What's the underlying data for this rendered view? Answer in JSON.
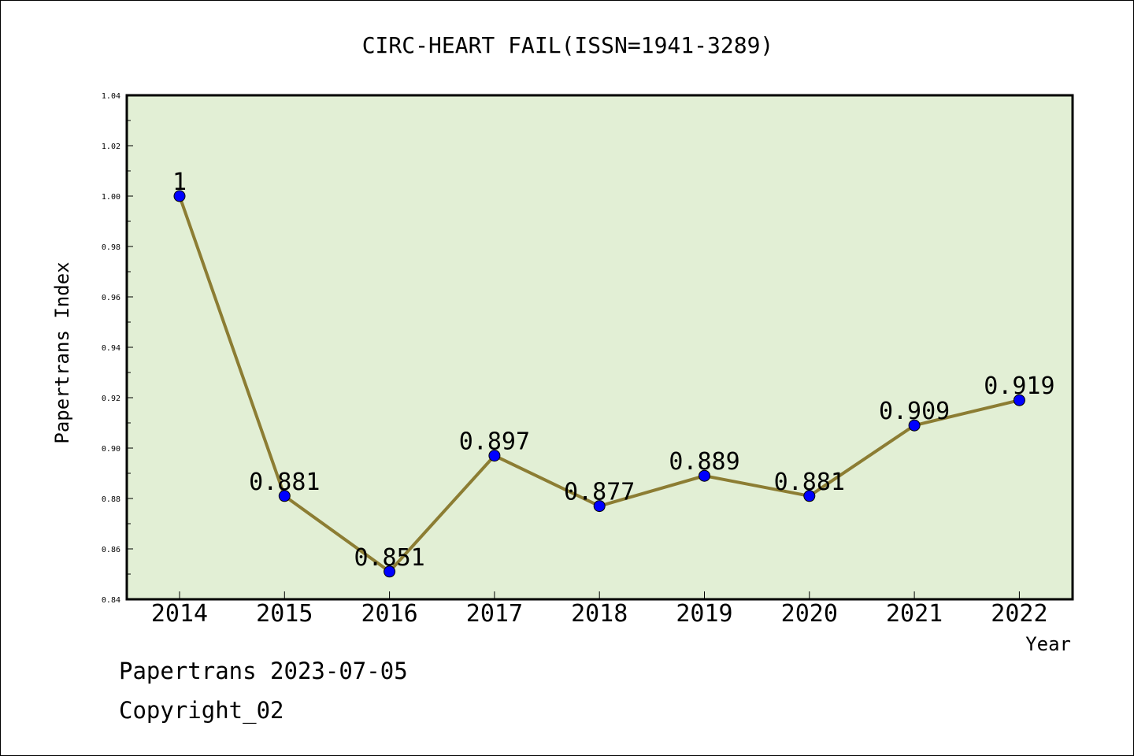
{
  "chart_data": {
    "type": "line",
    "title": "CIRC-HEART FAIL(ISSN=1941-3289)",
    "xlabel": "Year",
    "ylabel": "Papertrans Index",
    "categories": [
      "2014",
      "2015",
      "2016",
      "2017",
      "2018",
      "2019",
      "2020",
      "2021",
      "2022"
    ],
    "series": [
      {
        "values": [
          1,
          0.881,
          0.851,
          0.897,
          0.877,
          0.889,
          0.881,
          0.909,
          0.919
        ],
        "labels": [
          "1",
          "0.881",
          "0.851",
          "0.897",
          "0.877",
          "0.889",
          "0.881",
          "0.909",
          "0.919"
        ]
      }
    ],
    "ylim": [
      0.84,
      1.04
    ],
    "yticks": [
      "0.84",
      "0.86",
      "0.88",
      "0.90",
      "0.92",
      "0.94",
      "0.96",
      "0.98",
      "1.00",
      "1.02",
      "1.04"
    ],
    "grid": false,
    "legend": "none",
    "colors": {
      "plot_background": "#e2efd5",
      "line": "#8c7d33",
      "marker": "#0000ff",
      "axes": "#000000"
    }
  },
  "footer": {
    "date_line": "Papertrans 2023-07-05",
    "copyright": "Copyright_02"
  }
}
